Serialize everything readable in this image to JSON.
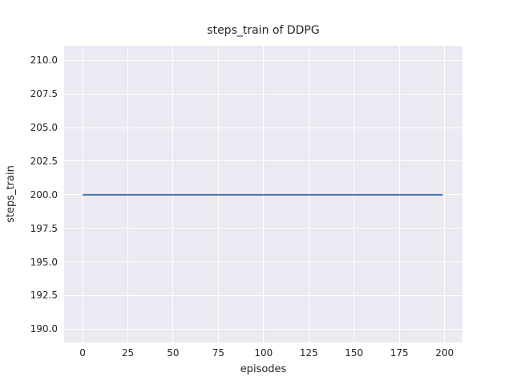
{
  "chart_data": {
    "type": "line",
    "title": "steps_train of DDPG",
    "xlabel": "episodes",
    "ylabel": "steps_train",
    "x_ticks": [
      0,
      25,
      50,
      75,
      100,
      125,
      150,
      175,
      200
    ],
    "x_tick_labels": [
      "0",
      "25",
      "50",
      "75",
      "100",
      "125",
      "150",
      "175",
      "200"
    ],
    "y_ticks": [
      190.0,
      192.5,
      195.0,
      197.5,
      200.0,
      202.5,
      205.0,
      207.5,
      210.0
    ],
    "y_tick_labels": [
      "190.0",
      "192.5",
      "195.0",
      "197.5",
      "200.0",
      "202.5",
      "205.0",
      "207.5",
      "210.0"
    ],
    "xlim": [
      -10.2,
      209.9
    ],
    "ylim": [
      189.0,
      211.1
    ],
    "grid": true,
    "legend": false,
    "series": [
      {
        "name": "steps_train",
        "x": [
          0,
          199
        ],
        "values": [
          200,
          200
        ],
        "color": "#4c72b0",
        "line_width": 2
      }
    ]
  },
  "colors": {
    "figure_background": "#ffffff",
    "plot_background": "#eaeaf2",
    "grid": "#ffffff",
    "text": "#262626",
    "line": "#4c72b0"
  }
}
